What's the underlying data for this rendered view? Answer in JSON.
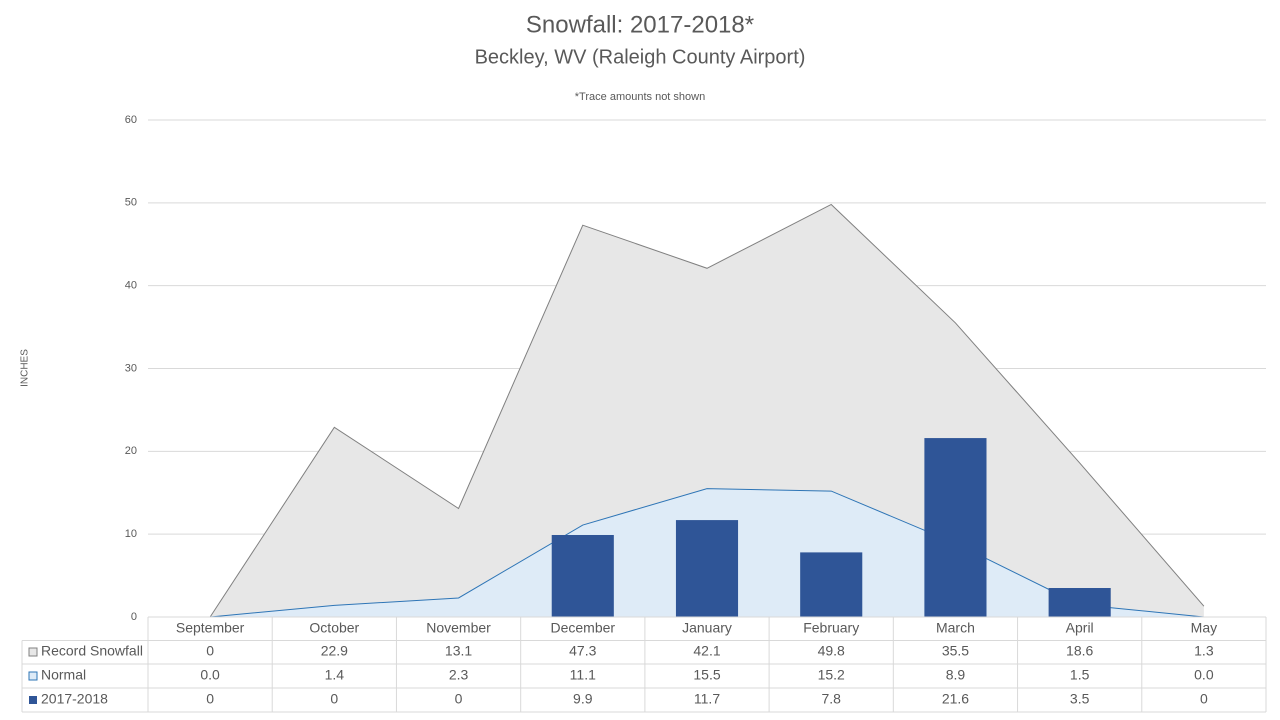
{
  "chart_data": {
    "type": "combo",
    "title": "Snowfall: 2017-2018*",
    "subtitle": "Beckley, WV (Raleigh County Airport)",
    "annotation": "*Trace amounts not shown",
    "y_label": "INCHES",
    "categories": [
      "September",
      "October",
      "November",
      "December",
      "January",
      "February",
      "March",
      "April",
      "May"
    ],
    "series": [
      {
        "name": "Record Snowfall",
        "type": "area",
        "color": "#e7e7e7",
        "line_color": "#808080",
        "values": [
          0,
          22.9,
          13.1,
          47.3,
          42.1,
          49.8,
          35.5,
          18.6,
          1.3
        ]
      },
      {
        "name": "Normal",
        "type": "area",
        "color": "#deebf7",
        "line_color": "#2e75b6",
        "values": [
          0,
          1.4,
          2.3,
          11.1,
          15.5,
          15.2,
          8.9,
          1.5,
          0
        ],
        "value_labels": [
          "0.0",
          "1.4",
          "2.3",
          "11.1",
          "15.5",
          "15.2",
          "8.9",
          "1.5",
          "0.0"
        ]
      },
      {
        "name": "2017-2018",
        "type": "bar",
        "color": "#2f5597",
        "values": [
          0,
          0,
          0,
          9.9,
          11.7,
          7.8,
          21.6,
          3.5,
          0
        ]
      }
    ],
    "ylim": [
      0,
      60
    ],
    "yticks": [
      0,
      10,
      20,
      30,
      40,
      50,
      60
    ],
    "grid": true
  }
}
